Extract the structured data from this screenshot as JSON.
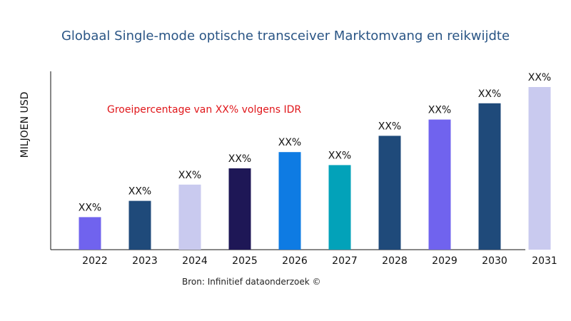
{
  "chart_data": {
    "type": "bar",
    "title": "Globaal Single-mode optische transceiver Marktomvang en reikwijdte",
    "ylabel": "MILJOEN USD",
    "xlabel": "",
    "annotation": "Groeipercentage van XX% volgens IDR",
    "source": "Bron: Infinitief dataonderzoek ©",
    "categories": [
      "2022",
      "2023",
      "2024",
      "2025",
      "2026",
      "2027",
      "2028",
      "2029",
      "2030",
      "2031"
    ],
    "values": [
      20,
      30,
      40,
      50,
      60,
      52,
      70,
      80,
      90,
      100
    ],
    "value_scale": "relative bar height (axis unlabeled)",
    "data_labels": [
      "XX%",
      "XX%",
      "XX%",
      "XX%",
      "XX%",
      "XX%",
      "XX%",
      "XX%",
      "XX%",
      "XX%"
    ],
    "colors": [
      "#7063ee",
      "#1f4a7a",
      "#c9caef",
      "#1e1756",
      "#0e7be3",
      "#02a2b9",
      "#1f4a7a",
      "#7063ee",
      "#1f4a7a",
      "#c9caef"
    ],
    "ylim": [
      0,
      110
    ],
    "grid": false,
    "legend": "none"
  }
}
